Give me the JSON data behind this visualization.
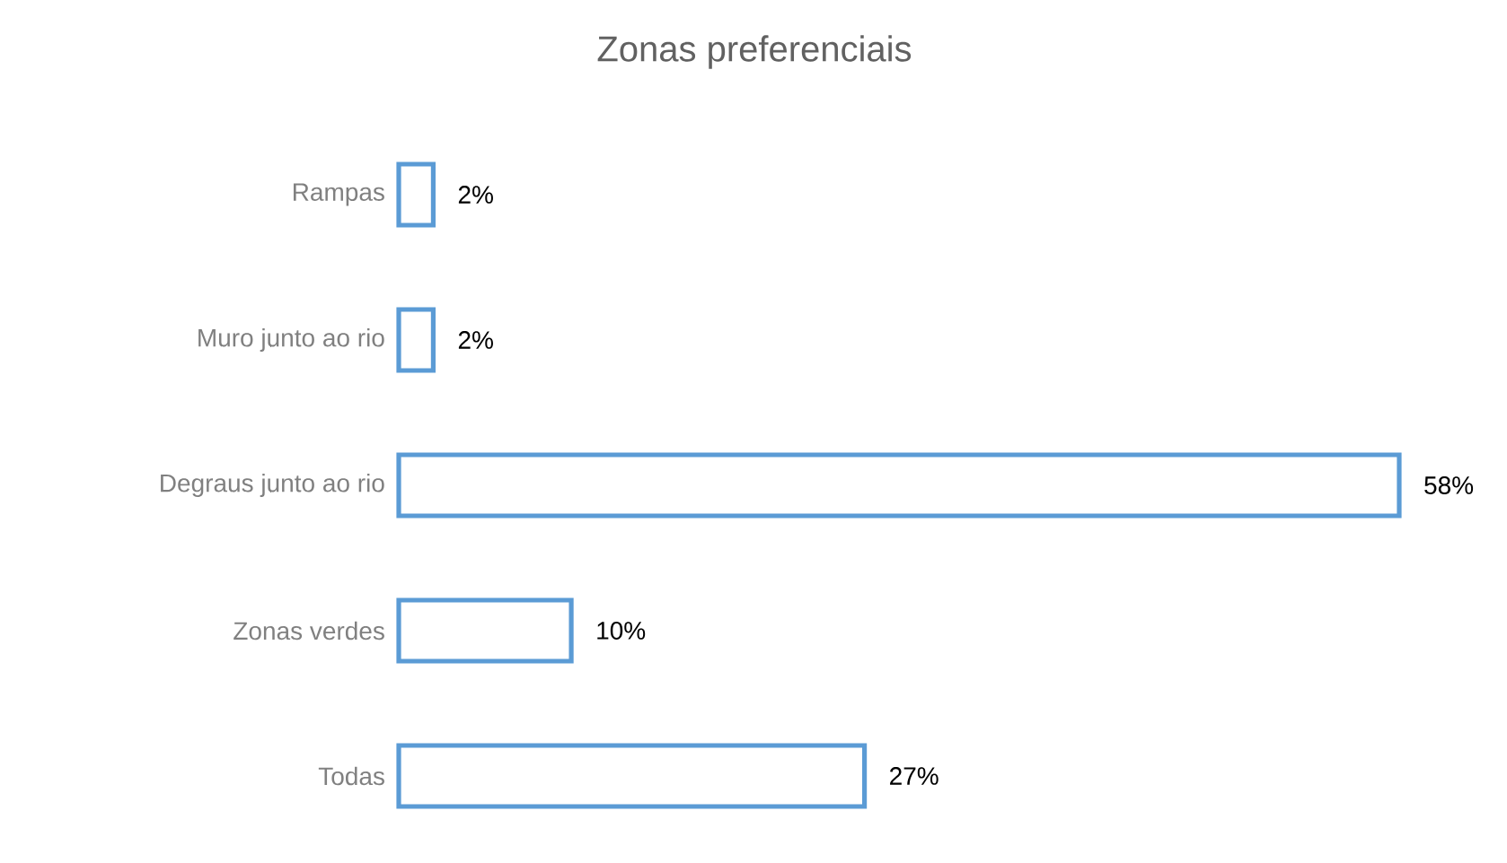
{
  "chart_data": {
    "type": "bar",
    "orientation": "horizontal",
    "title": "Zonas preferenciais",
    "categories": [
      "Rampas",
      "Muro junto ao rio",
      "Degraus junto ao rio",
      "Zonas verdes",
      "Todas"
    ],
    "values": [
      2,
      2,
      58,
      10,
      27
    ],
    "value_labels": [
      "2%",
      "2%",
      "58%",
      "10%",
      "27%"
    ],
    "color": "#5b9bd5"
  }
}
